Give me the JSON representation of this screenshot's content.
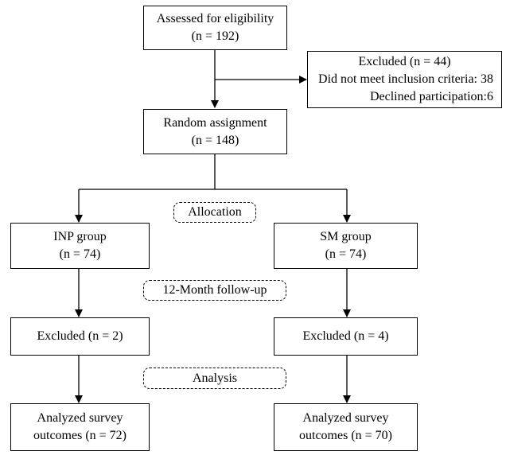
{
  "assessed": {
    "line1": "Assessed for eligibility",
    "line2": "(n = 192)"
  },
  "excluded_top": {
    "line1": "Excluded (n = 44)",
    "line2": "Did not meet inclusion criteria: 38",
    "line3": "Declined participation:6"
  },
  "random": {
    "line1": "Random assignment",
    "line2": "(n = 148)"
  },
  "phases": {
    "allocation": "Allocation",
    "followup": "12-Month follow-up",
    "analysis": "Analysis"
  },
  "inp": {
    "group": {
      "line1": "INP group",
      "line2": "(n = 74)"
    },
    "excluded": "Excluded (n = 2)",
    "analyzed": {
      "line1": "Analyzed survey",
      "line2": "outcomes (n = 72)"
    }
  },
  "sm": {
    "group": {
      "line1": "SM group",
      "line2": "(n = 74)"
    },
    "excluded": "Excluded (n = 4)",
    "analyzed": {
      "line1": "Analyzed survey",
      "line2": "outcomes (n = 70)"
    }
  }
}
